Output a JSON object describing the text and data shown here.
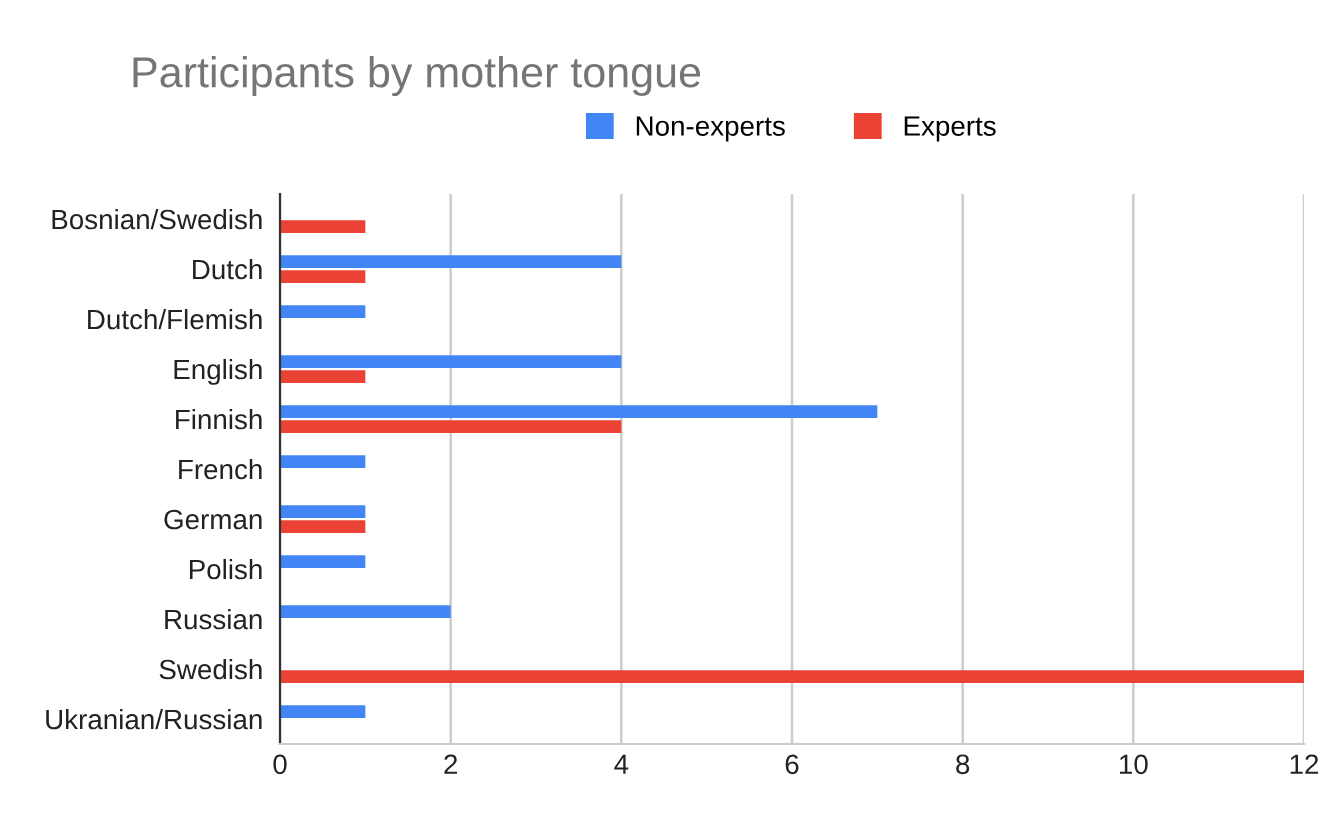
{
  "chart_data": {
    "type": "bar",
    "orientation": "horizontal",
    "title": "Participants by mother tongue",
    "categories": [
      "Bosnian/Swedish",
      "Dutch",
      "Dutch/Flemish",
      "English",
      "Finnish",
      "French",
      "German",
      "Polish",
      "Russian",
      "Swedish",
      "Ukranian/Russian"
    ],
    "series": [
      {
        "name": "Non-experts",
        "color": "#4285f4",
        "values": [
          null,
          4,
          1,
          4,
          7,
          1,
          1,
          1,
          2,
          null,
          1
        ]
      },
      {
        "name": "Experts",
        "color": "#ea4335",
        "values": [
          1,
          1,
          null,
          1,
          4,
          null,
          1,
          null,
          null,
          12,
          null
        ]
      }
    ],
    "xlim": [
      0,
      12
    ],
    "xticks": [
      0,
      2,
      4,
      6,
      8,
      10,
      12
    ],
    "grid": "x",
    "legend": "top"
  }
}
